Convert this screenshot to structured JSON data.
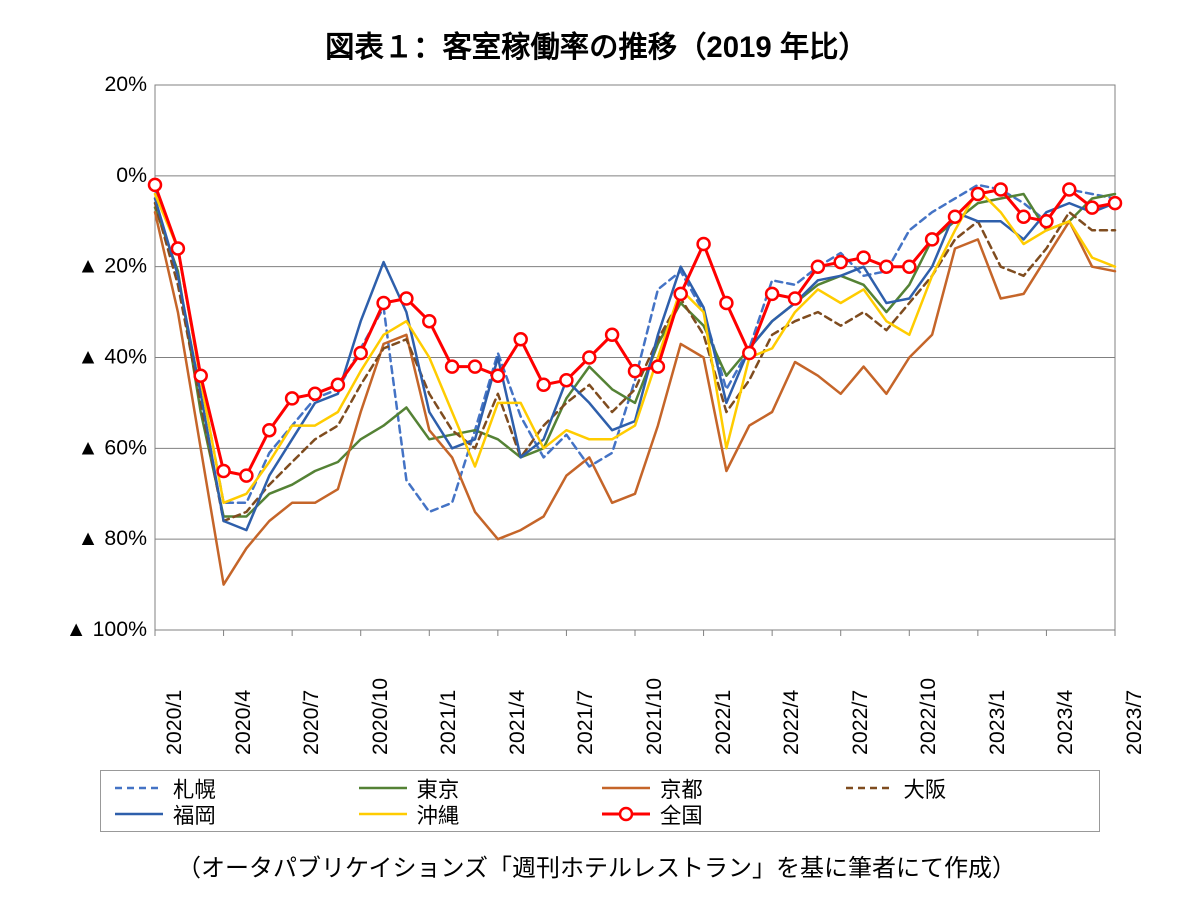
{
  "title": {
    "text": "図表１：客室稼働率の推移（2019 年比）",
    "fontsize_pt": 22,
    "font_weight": "bold",
    "color": "#000000"
  },
  "source": {
    "text": "（オータパブリケイションズ「週刊ホテルレストラン」を基に筆者にて作成）",
    "fontsize_pt": 18,
    "color": "#000000"
  },
  "chart": {
    "type": "line",
    "background_color": "#ffffff",
    "plot_border_color": "#808080",
    "plot_border_width": 1,
    "grid_color": "#808080",
    "grid_width": 1,
    "xaxis": {
      "categories": [
        "2020/1",
        "2020/2",
        "2020/3",
        "2020/4",
        "2020/5",
        "2020/6",
        "2020/7",
        "2020/8",
        "2020/9",
        "2020/10",
        "2020/11",
        "2020/12",
        "2021/1",
        "2021/2",
        "2021/3",
        "2021/4",
        "2021/5",
        "2021/6",
        "2021/7",
        "2021/8",
        "2021/9",
        "2021/10",
        "2021/11",
        "2021/12",
        "2022/1",
        "2022/2",
        "2022/3",
        "2022/4",
        "2022/5",
        "2022/6",
        "2022/7",
        "2022/8",
        "2022/9",
        "2022/10",
        "2022/11",
        "2022/12",
        "2023/1",
        "2023/2",
        "2023/3",
        "2023/4",
        "2023/5",
        "2023/6",
        "2023/7"
      ],
      "tick_every": 3,
      "tick_label_fontsize_pt": 16,
      "tick_label_rotation_deg": -90,
      "tick_label_color": "#000000"
    },
    "yaxis": {
      "min": -100,
      "max": 20,
      "ticks": [
        20,
        0,
        -20,
        -40,
        -60,
        -80,
        -100
      ],
      "tick_labels": [
        "20%",
        "0%",
        "▲ 20%",
        "▲ 40%",
        "▲ 60%",
        "▲ 80%",
        "▲ 100%"
      ],
      "tick_label_fontsize_pt": 16,
      "tick_label_color": "#000000"
    },
    "series": [
      {
        "id": "sapporo",
        "name": "札幌",
        "color": "#4473c5",
        "line_width": 2.5,
        "dash": "7 5",
        "marker": "none",
        "values": [
          -3,
          -16,
          -45,
          -72,
          -72,
          -61,
          -55,
          -49,
          -47,
          -38,
          -29,
          -67,
          -74,
          -72,
          -56,
          -39,
          -53,
          -62,
          -57,
          -64,
          -61,
          -45,
          -25,
          -21,
          -30,
          -47,
          -38,
          -23,
          -24,
          -20,
          -17,
          -22,
          -21,
          -12,
          -8,
          -5,
          -2,
          -3,
          -6,
          -10,
          -3,
          -4,
          -5
        ]
      },
      {
        "id": "tokyo",
        "name": "東京",
        "color": "#548235",
        "line_width": 2.5,
        "dash": "none",
        "marker": "none",
        "values": [
          -7,
          -21,
          -52,
          -75,
          -75,
          -70,
          -68,
          -65,
          -63,
          -58,
          -55,
          -51,
          -58,
          -57,
          -56,
          -58,
          -62,
          -60,
          -49,
          -42,
          -47,
          -50,
          -37,
          -28,
          -33,
          -44,
          -38,
          -32,
          -28,
          -24,
          -22,
          -24,
          -30,
          -24,
          -14,
          -10,
          -6,
          -5,
          -4,
          -12,
          -10,
          -5,
          -4
        ]
      },
      {
        "id": "kyoto",
        "name": "京都",
        "color": "#c56529",
        "line_width": 2.5,
        "dash": "none",
        "marker": "none",
        "values": [
          -8,
          -30,
          -60,
          -90,
          -82,
          -76,
          -72,
          -72,
          -69,
          -52,
          -37,
          -35,
          -56,
          -62,
          -74,
          -80,
          -78,
          -75,
          -66,
          -62,
          -72,
          -70,
          -55,
          -37,
          -40,
          -65,
          -55,
          -52,
          -41,
          -44,
          -48,
          -42,
          -48,
          -40,
          -35,
          -16,
          -14,
          -27,
          -26,
          -18,
          -10,
          -20,
          -21
        ]
      },
      {
        "id": "osaka",
        "name": "大阪",
        "color": "#7f4c1f",
        "line_width": 2.5,
        "dash": "7 5",
        "marker": "none",
        "values": [
          -6,
          -24,
          -50,
          -76,
          -74,
          -68,
          -63,
          -58,
          -55,
          -46,
          -38,
          -36,
          -48,
          -56,
          -60,
          -48,
          -62,
          -55,
          -50,
          -46,
          -52,
          -47,
          -36,
          -27,
          -35,
          -52,
          -45,
          -35,
          -32,
          -30,
          -33,
          -30,
          -34,
          -28,
          -22,
          -14,
          -10,
          -20,
          -22,
          -16,
          -8,
          -12,
          -12
        ]
      },
      {
        "id": "fukuoka",
        "name": "福岡",
        "color": "#2e5fab",
        "line_width": 2.5,
        "dash": "none",
        "marker": "none",
        "values": [
          -5,
          -22,
          -48,
          -76,
          -78,
          -66,
          -58,
          -50,
          -48,
          -32,
          -19,
          -30,
          -52,
          -60,
          -58,
          -40,
          -62,
          -58,
          -45,
          -50,
          -56,
          -54,
          -35,
          -20,
          -29,
          -50,
          -38,
          -32,
          -28,
          -23,
          -22,
          -20,
          -28,
          -27,
          -20,
          -8,
          -10,
          -10,
          -14,
          -8,
          -6,
          -8,
          -6
        ]
      },
      {
        "id": "okinawa",
        "name": "沖縄",
        "color": "#ffcc00",
        "line_width": 2.5,
        "dash": "none",
        "marker": "none",
        "values": [
          -4,
          -16,
          -45,
          -72,
          -70,
          -63,
          -55,
          -55,
          -52,
          -43,
          -35,
          -32,
          -40,
          -52,
          -64,
          -50,
          -50,
          -60,
          -56,
          -58,
          -58,
          -55,
          -40,
          -25,
          -30,
          -60,
          -40,
          -38,
          -30,
          -25,
          -28,
          -25,
          -32,
          -35,
          -22,
          -12,
          -3,
          -8,
          -15,
          -12,
          -10,
          -18,
          -20
        ]
      },
      {
        "id": "zenkoku",
        "name": "全国",
        "color": "#ff0000",
        "line_width": 3.0,
        "dash": "none",
        "marker": "circle",
        "marker_size": 6,
        "marker_fill": "#ffffff",
        "marker_stroke": "#ff0000",
        "marker_stroke_width": 2.5,
        "values": [
          -2,
          -16,
          -44,
          -65,
          -66,
          -56,
          -49,
          -48,
          -46,
          -39,
          -28,
          -27,
          -32,
          -42,
          -42,
          -44,
          -36,
          -46,
          -45,
          -40,
          -35,
          -43,
          -42,
          -26,
          -15,
          -28,
          -39,
          -26,
          -27,
          -20,
          -19,
          -18,
          -20,
          -20,
          -14,
          -9,
          -4,
          -3,
          -9,
          -10,
          -3,
          -7,
          -6
        ]
      }
    ],
    "legend": {
      "border_color": "#999999",
      "label_fontsize_pt": 16,
      "order": [
        "sapporo",
        "tokyo",
        "kyoto",
        "osaka",
        "fukuoka",
        "okinawa",
        "zenkoku"
      ]
    }
  }
}
